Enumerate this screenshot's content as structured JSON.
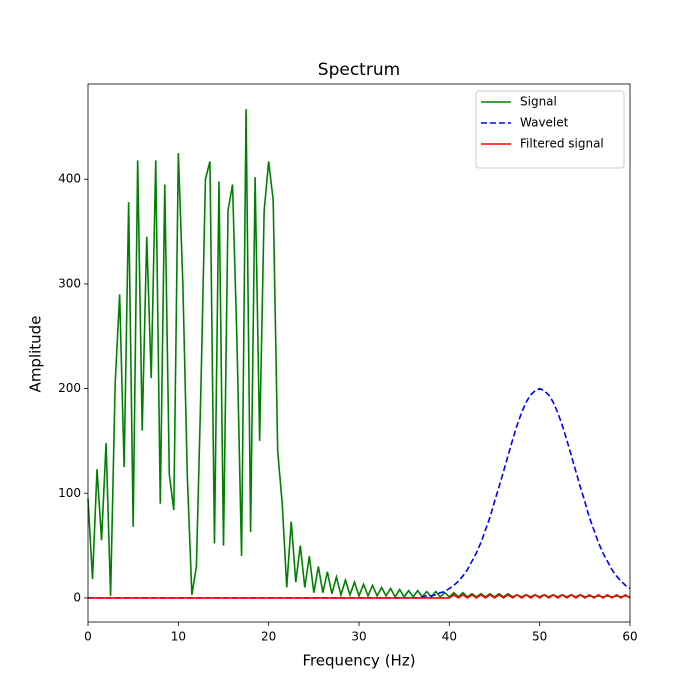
{
  "chart_data": {
    "type": "line",
    "title": "Spectrum",
    "x_label": "Frequency (Hz)",
    "y_label": "Amplitude",
    "x": [
      0,
      0.5,
      1,
      1.5,
      2,
      2.5,
      3,
      3.5,
      4,
      4.5,
      5,
      5.5,
      6,
      6.5,
      7,
      7.5,
      8,
      8.5,
      9,
      9.5,
      10,
      10.5,
      11,
      11.5,
      12,
      12.5,
      13,
      13.5,
      14,
      14.5,
      15,
      15.5,
      16,
      16.5,
      17,
      17.5,
      18,
      18.5,
      19,
      19.5,
      20,
      20.5,
      21,
      21.5,
      22,
      22.5,
      23,
      23.5,
      24,
      24.5,
      25,
      25.5,
      26,
      26.5,
      27,
      27.5,
      28,
      28.5,
      29,
      29.5,
      30,
      30.5,
      31,
      31.5,
      32,
      32.5,
      33,
      33.5,
      34,
      34.5,
      35,
      35.5,
      36,
      36.5,
      37,
      37.5,
      38,
      38.5,
      39,
      39.5,
      40,
      40.5,
      41,
      41.5,
      42,
      42.5,
      43,
      43.5,
      44,
      44.5,
      45,
      45.5,
      46,
      46.5,
      47,
      47.5,
      48,
      48.5,
      49,
      49.5,
      50,
      50.5,
      51,
      51.5,
      52,
      52.5,
      53,
      53.5,
      54,
      54.5,
      55,
      55.5,
      56,
      56.5,
      57,
      57.5,
      58,
      58.5,
      59,
      59.5,
      60
    ],
    "series": [
      {
        "name": "Signal",
        "color": "#008000",
        "dash": "solid",
        "values": [
          95,
          18,
          123,
          55,
          148,
          2,
          203,
          290,
          125,
          378,
          68,
          418,
          160,
          345,
          210,
          418,
          90,
          395,
          118,
          84,
          425,
          300,
          115,
          3,
          30,
          200,
          400,
          417,
          52,
          398,
          50,
          370,
          395,
          242,
          40,
          467,
          63,
          402,
          150,
          370,
          417,
          380,
          140,
          90,
          10,
          73,
          15,
          50,
          10,
          40,
          5,
          30,
          5,
          25,
          4,
          20,
          3,
          17,
          3,
          15,
          2,
          13,
          2,
          12,
          2,
          10,
          2,
          9,
          1,
          8,
          1,
          7,
          1,
          7,
          1,
          6,
          1,
          6,
          1,
          5,
          1,
          5,
          1,
          5,
          1,
          4,
          1,
          4,
          1,
          4,
          1,
          4,
          1,
          4,
          1,
          3,
          1,
          3,
          1,
          3,
          1,
          3,
          1,
          3,
          1,
          3,
          1,
          3,
          1,
          3,
          1,
          2,
          1,
          2,
          1,
          2,
          1,
          2,
          1,
          2,
          1
        ]
      },
      {
        "name": "Wavelet",
        "color": "#0000ff",
        "dash": "dashed",
        "values": [
          0,
          0,
          0,
          0,
          0,
          0,
          0,
          0,
          0,
          0,
          0,
          0,
          0,
          0,
          0,
          0,
          0,
          0,
          0,
          0,
          0,
          0,
          0,
          0,
          0,
          0,
          0,
          0,
          0,
          0,
          0,
          0,
          0,
          0,
          0,
          0,
          0,
          0,
          0,
          0,
          0,
          0,
          0,
          0,
          0,
          0,
          0,
          0,
          0,
          0,
          0,
          0,
          0,
          0,
          0,
          0,
          0,
          0,
          0,
          0,
          0,
          0,
          0,
          0,
          0,
          0,
          0,
          0,
          0,
          0,
          0,
          0,
          0,
          0,
          1,
          2,
          2,
          3,
          5,
          6,
          9,
          12,
          16,
          21,
          27,
          35,
          43,
          53,
          65,
          77,
          92,
          106,
          121,
          136,
          151,
          165,
          177,
          187,
          194,
          198,
          200,
          198,
          194,
          187,
          177,
          165,
          151,
          136,
          121,
          106,
          92,
          77,
          65,
          53,
          43,
          35,
          27,
          21,
          16,
          12,
          9
        ]
      },
      {
        "name": "Filtered signal",
        "color": "#ff0000",
        "dash": "solid",
        "values": [
          0,
          0,
          0,
          0,
          0,
          0,
          0,
          0,
          0,
          0,
          0,
          0,
          0,
          0,
          0,
          0,
          0,
          0,
          0,
          0,
          0,
          0,
          0,
          0,
          0,
          0,
          0,
          0,
          0,
          0,
          0,
          0,
          0,
          0,
          0,
          0,
          0,
          0,
          0,
          0,
          0,
          0,
          0,
          0,
          0,
          0,
          0,
          0,
          0,
          0,
          0,
          0,
          0,
          0,
          0,
          0,
          0,
          0,
          0,
          0,
          0,
          0,
          0,
          0,
          0,
          0,
          0,
          0,
          0,
          0,
          0,
          0,
          0,
          0,
          0,
          0,
          0,
          0,
          0,
          0,
          0,
          3,
          0,
          3,
          0,
          3,
          0,
          3,
          0,
          3,
          0,
          3,
          0,
          3,
          0,
          3,
          0,
          3,
          0,
          3,
          0,
          3,
          0,
          3,
          0,
          3,
          0,
          3,
          0,
          3,
          0,
          3,
          0,
          3,
          0,
          3,
          0,
          3,
          0,
          3,
          0
        ]
      }
    ],
    "xlim": [
      0,
      60
    ],
    "xticks": [
      0,
      10,
      20,
      30,
      40,
      50,
      60
    ],
    "ylim": [
      -23,
      491
    ],
    "yticks": [
      0,
      100,
      200,
      300,
      400
    ],
    "legend": "upper right"
  }
}
